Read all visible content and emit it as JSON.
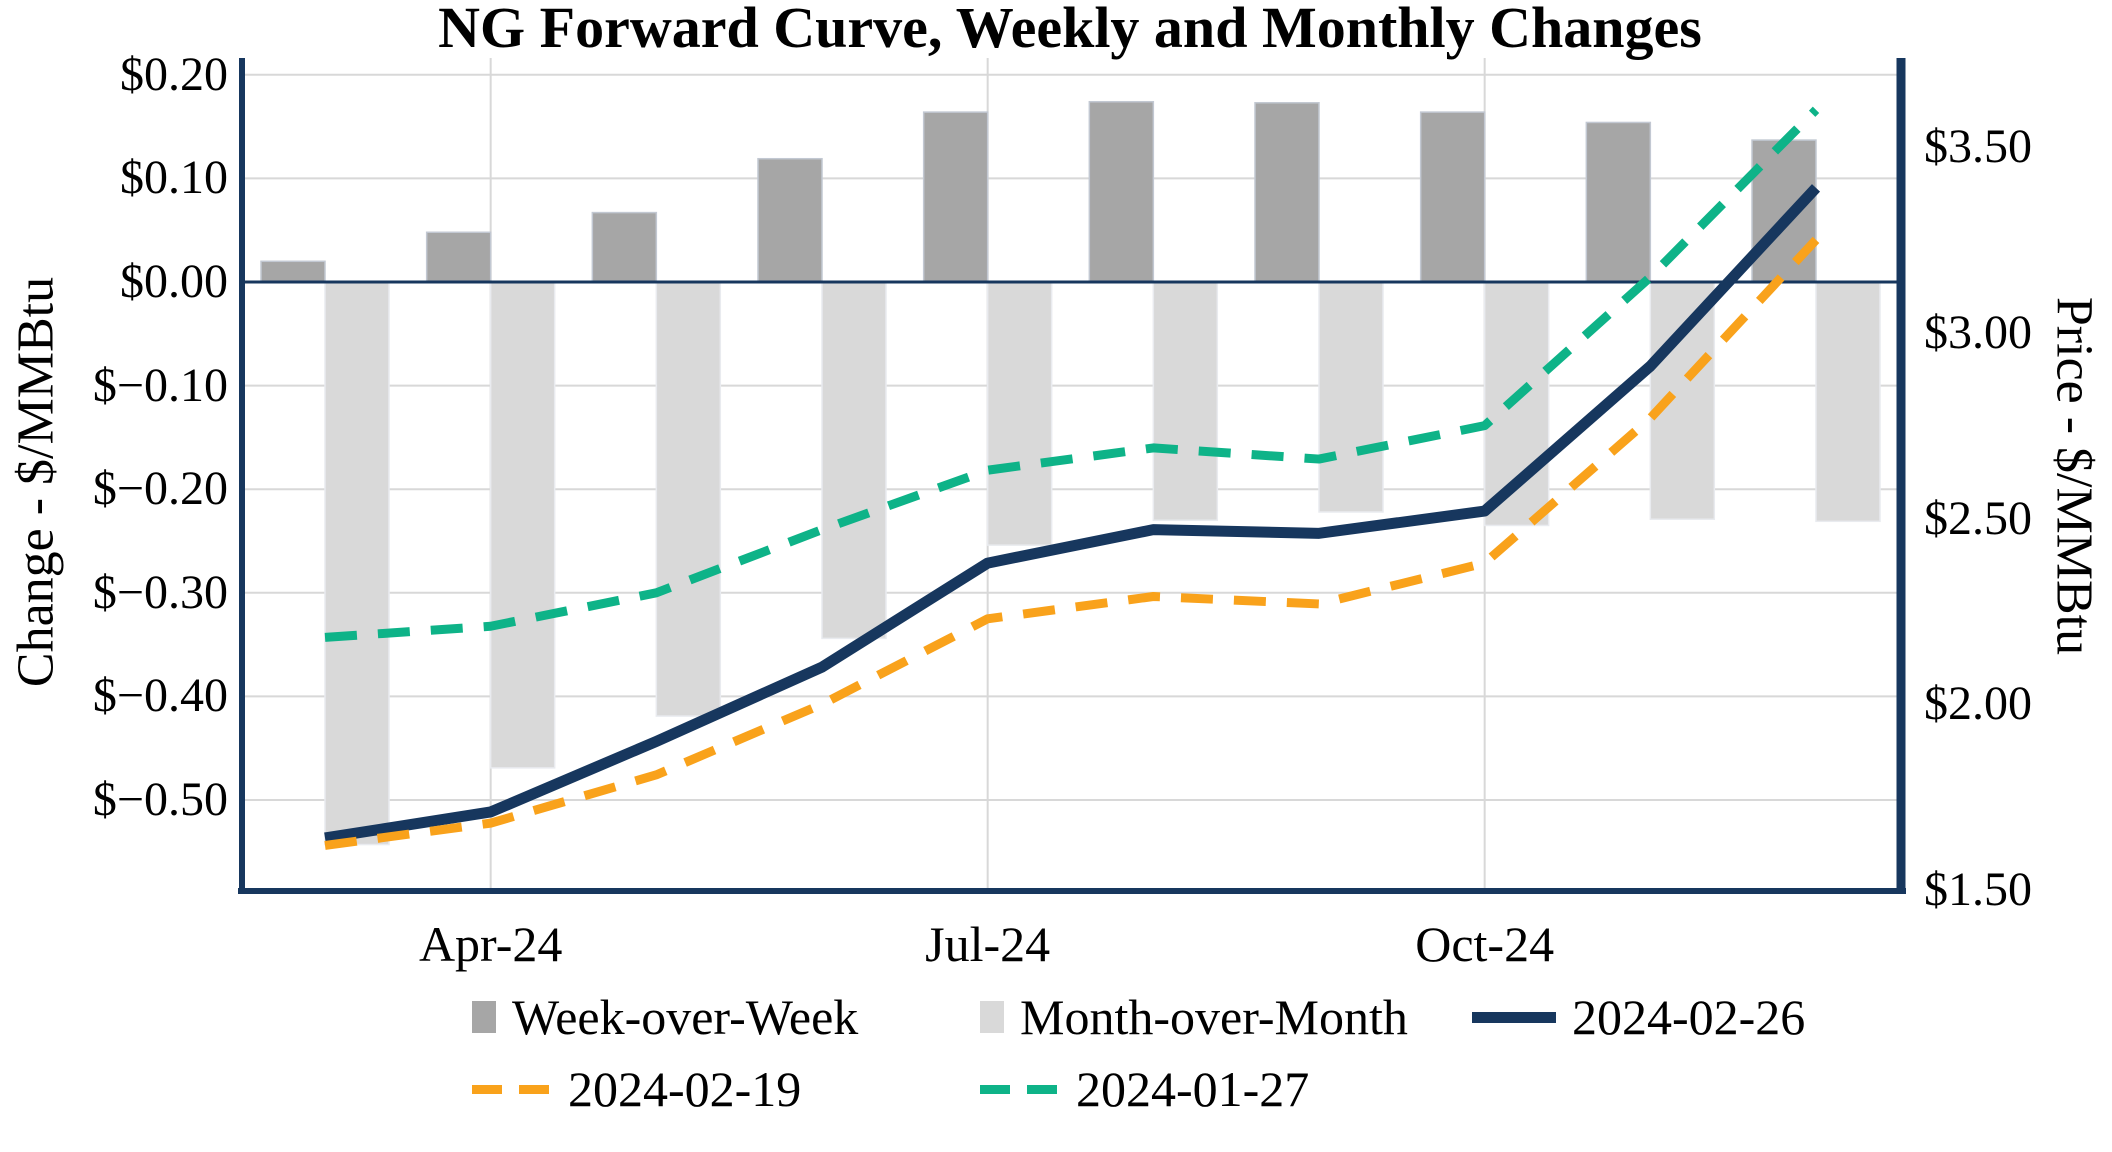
{
  "title": "NG Forward Curve, Weekly and Monthly Changes",
  "left_axis": {
    "label": "Change - $/MMBtu",
    "ticks": [
      "$0.20",
      "$0.10",
      "$0.00",
      "$−0.10",
      "$−0.20",
      "$−0.30",
      "$−0.40",
      "$−0.50"
    ],
    "tick_values": [
      0.2,
      0.1,
      0.0,
      -0.1,
      -0.2,
      -0.3,
      -0.4,
      -0.5
    ]
  },
  "right_axis": {
    "label": "Price - $/MMBtu",
    "ticks": [
      "$3.50",
      "$3.00",
      "$2.50",
      "$2.00",
      "$1.50"
    ],
    "tick_values": [
      3.5,
      3.0,
      2.5,
      2.0,
      1.5
    ]
  },
  "x_axis": {
    "tick_labels": [
      {
        "label": "Apr-24",
        "month_index": 1
      },
      {
        "label": "Jul-24",
        "month_index": 4
      },
      {
        "label": "Oct-24",
        "month_index": 7
      }
    ]
  },
  "legend": {
    "rows": [
      [
        {
          "label": "Week-over-Week",
          "marker": "bar",
          "color_key": "bar_dark"
        },
        {
          "label": "Month-over-Month",
          "marker": "bar",
          "color_key": "bar_light"
        },
        {
          "label": "2024-02-26",
          "marker": "line_solid",
          "color_key": "navy"
        }
      ],
      [
        {
          "label": "2024-02-19",
          "marker": "line_dashed",
          "color_key": "orange"
        },
        {
          "label": "2024-01-27",
          "marker": "line_dashed",
          "color_key": "green"
        }
      ]
    ]
  },
  "colors": {
    "navy": "#17375e",
    "orange": "#f9a21b",
    "green": "#0eb388",
    "bar_dark": "#a6a6a6",
    "bar_light": "#d9d9d9",
    "gridline": "#d8d8d8",
    "background": "#ffffff"
  },
  "chart_data": {
    "type": "combo-bar-line-dual-axis",
    "categories": [
      "",
      "Apr-24",
      "",
      "",
      "Jul-24",
      "",
      "",
      "Oct-24",
      "",
      ""
    ],
    "num_months": 10,
    "left_ylim": [
      -0.59,
      0.215
    ],
    "right_ylim": [
      1.5,
      3.73
    ],
    "grid": "horizontal at every left tick, vertical at labeled months",
    "legend_position": "bottom, two rows",
    "series": [
      {
        "name": "Week-over-Week",
        "type": "bar",
        "axis": "left",
        "values": [
          0.02,
          0.048,
          0.067,
          0.119,
          0.164,
          0.174,
          0.173,
          0.164,
          0.154,
          0.137
        ]
      },
      {
        "name": "Month-over-Month",
        "type": "bar",
        "axis": "left",
        "values": [
          -0.543,
          -0.469,
          -0.419,
          -0.344,
          -0.254,
          -0.23,
          -0.222,
          -0.235,
          -0.229,
          -0.231
        ]
      },
      {
        "name": "2024-02-26",
        "type": "line",
        "axis": "right",
        "values": [
          1.64,
          1.71,
          1.9,
          2.1,
          2.38,
          2.47,
          2.46,
          2.52,
          2.91,
          3.39
        ]
      },
      {
        "name": "2024-02-19",
        "type": "line-dashed",
        "axis": "right",
        "values": [
          1.62,
          1.68,
          1.81,
          2.0,
          2.23,
          2.29,
          2.27,
          2.38,
          2.77,
          3.25
        ]
      },
      {
        "name": "2024-01-27",
        "type": "line-dashed",
        "axis": "right",
        "values": [
          2.18,
          2.21,
          2.3,
          2.47,
          2.63,
          2.69,
          2.66,
          2.75,
          3.15,
          3.6
        ]
      }
    ]
  }
}
